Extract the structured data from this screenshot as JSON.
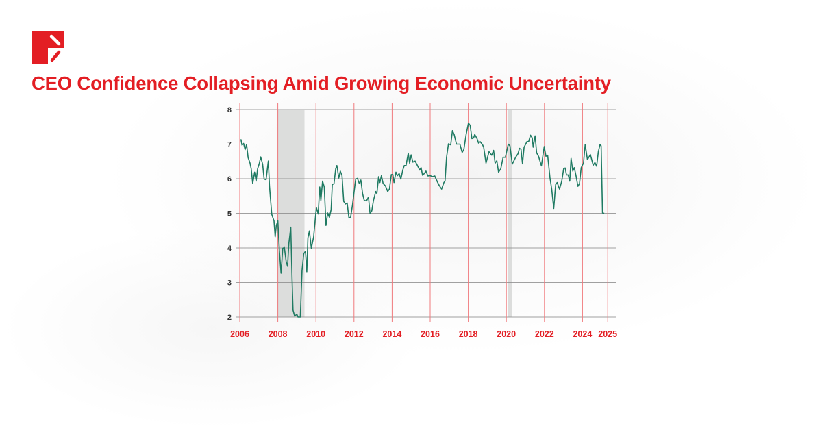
{
  "header": {
    "logo_icon": "red-square-logo-icon",
    "title": "CEO Confidence Collapsing Amid Growing Economic Uncertainty"
  },
  "colors": {
    "accent": "#e31e24",
    "line": "#1f7a62",
    "recession": "#dcdddc",
    "grid": "#8a8a8a"
  },
  "chart_data": {
    "type": "line",
    "title": "CEO Confidence Collapsing Amid Growing Economic Uncertainty",
    "xlabel": "",
    "ylabel": "",
    "xlim": [
      2006,
      2025
    ],
    "ylim": [
      2,
      8
    ],
    "x_ticks": [
      "2006",
      "2008",
      "2010",
      "2012",
      "2014",
      "2016",
      "2018",
      "2020",
      "2022",
      "2024",
      "2025"
    ],
    "y_ticks": [
      "2",
      "3",
      "4",
      "5",
      "6",
      "7",
      "8"
    ],
    "grid": true,
    "recessions": [
      [
        2007.96,
        2009.4
      ],
      [
        2020.1,
        2020.3
      ]
    ],
    "series": [
      {
        "x": [
          2006.06,
          2006.12,
          2006.2,
          2006.28,
          2006.36,
          2006.44,
          2006.54,
          2006.6,
          2006.68,
          2006.78,
          2006.86,
          2006.94,
          2007.02,
          2007.1,
          2007.2,
          2007.28,
          2007.38,
          2007.5,
          2007.56,
          2007.68,
          2007.8,
          2007.86,
          2007.92,
          2008.0,
          2008.08,
          2008.17,
          2008.26,
          2008.34,
          2008.44,
          2008.51,
          2008.58,
          2008.68,
          2008.75,
          2008.8,
          2008.88,
          2009.0,
          2009.06,
          2009.18,
          2009.27,
          2009.36,
          2009.45,
          2009.52,
          2009.58,
          2009.66,
          2009.76,
          2009.88,
          2010.02,
          2010.12,
          2010.2,
          2010.26,
          2010.35,
          2010.44,
          2010.53,
          2010.62,
          2010.71,
          2010.8,
          2010.86,
          2010.95,
          2011.04,
          2011.1,
          2011.2,
          2011.28,
          2011.37,
          2011.46,
          2011.56,
          2011.64,
          2011.73,
          2011.82,
          2011.92,
          2012.0,
          2012.09,
          2012.18,
          2012.28,
          2012.36,
          2012.45,
          2012.54,
          2012.66,
          2012.76,
          2012.84,
          2012.93,
          2013.02,
          2013.14,
          2013.2,
          2013.29,
          2013.36,
          2013.44,
          2013.53,
          2013.65,
          2013.77,
          2013.86,
          2013.96,
          2014.04,
          2014.1,
          2014.2,
          2014.28,
          2014.37,
          2014.46,
          2014.56,
          2014.64,
          2014.73,
          2014.85,
          2014.92,
          2015.0,
          2015.09,
          2015.21,
          2015.33,
          2015.45,
          2015.52,
          2015.6,
          2015.69,
          2015.78,
          2015.88,
          2016.0,
          2016.12,
          2016.24,
          2016.36,
          2016.48,
          2016.6,
          2016.72,
          2016.78,
          2016.86,
          2016.96,
          2017.08,
          2017.17,
          2017.26,
          2017.38,
          2017.56,
          2017.68,
          2017.77,
          2017.89,
          2018.01,
          2018.1,
          2018.19,
          2018.28,
          2018.34,
          2018.46,
          2018.54,
          2018.63,
          2018.75,
          2018.81,
          2018.93,
          2019.09,
          2019.23,
          2019.33,
          2019.41,
          2019.5,
          2019.59,
          2019.71,
          2019.83,
          2019.95,
          2020.1,
          2020.19,
          2020.31,
          2020.49,
          2020.61,
          2020.69,
          2020.77,
          2020.85,
          2020.93,
          2021.09,
          2021.17,
          2021.27,
          2021.36,
          2021.41,
          2021.51,
          2021.59,
          2021.69,
          2021.84,
          2021.99,
          2022.08,
          2022.17,
          2022.29,
          2022.38,
          2022.49,
          2022.59,
          2022.67,
          2022.79,
          2022.91,
          2023.01,
          2023.09,
          2023.16,
          2023.25,
          2023.33,
          2023.4,
          2023.49,
          2023.57,
          2023.66,
          2023.76,
          2023.84,
          2023.93,
          2024.05,
          2024.14,
          2024.26,
          2024.41,
          2024.56,
          2024.65,
          2024.74,
          2024.83,
          2024.92,
          2024.98,
          2025.05,
          2025.14
        ],
        "y": [
          7.14,
          6.97,
          7.02,
          6.84,
          6.99,
          6.61,
          6.45,
          6.29,
          5.86,
          6.19,
          5.93,
          6.29,
          6.43,
          6.63,
          6.42,
          5.99,
          5.97,
          6.51,
          5.79,
          4.97,
          4.78,
          4.32,
          4.65,
          4.78,
          3.93,
          3.27,
          3.99,
          4.01,
          3.6,
          3.47,
          4.13,
          4.6,
          3.08,
          2.2,
          2.03,
          2.08,
          2.0,
          2.0,
          3.34,
          3.83,
          3.9,
          3.31,
          4.29,
          4.49,
          3.99,
          4.32,
          5.17,
          4.98,
          5.76,
          5.37,
          5.93,
          5.76,
          4.65,
          5.01,
          4.88,
          5.11,
          5.83,
          5.86,
          6.29,
          6.38,
          6.02,
          6.22,
          6.09,
          5.34,
          5.27,
          5.3,
          4.88,
          4.88,
          5.24,
          5.6,
          5.99,
          6.01,
          5.86,
          5.96,
          5.57,
          5.37,
          5.36,
          5.47,
          4.99,
          5.07,
          5.37,
          5.63,
          5.57,
          6.06,
          5.89,
          6.09,
          5.86,
          5.79,
          5.63,
          5.7,
          6.12,
          6.12,
          5.89,
          6.19,
          6.09,
          6.15,
          5.99,
          6.25,
          6.38,
          6.38,
          6.74,
          6.45,
          6.69,
          6.48,
          6.51,
          6.38,
          6.25,
          6.32,
          6.1,
          6.15,
          6.22,
          6.08,
          6.09,
          6.06,
          6.08,
          5.93,
          5.8,
          5.7,
          5.89,
          5.93,
          6.62,
          7.01,
          6.98,
          7.39,
          7.28,
          7.0,
          7.0,
          6.76,
          6.85,
          7.28,
          7.61,
          7.54,
          7.16,
          7.18,
          7.28,
          7.16,
          7.03,
          7.07,
          6.98,
          6.91,
          6.45,
          6.78,
          6.68,
          6.82,
          6.45,
          6.52,
          6.19,
          6.29,
          6.62,
          6.62,
          7.0,
          6.95,
          6.42,
          6.62,
          6.72,
          6.88,
          6.85,
          6.43,
          6.91,
          7.08,
          7.07,
          7.26,
          7.18,
          6.91,
          7.24,
          6.75,
          6.65,
          6.37,
          6.93,
          6.65,
          6.68,
          6.03,
          5.7,
          5.14,
          5.83,
          5.89,
          5.7,
          5.93,
          6.29,
          6.31,
          6.11,
          6.11,
          5.93,
          6.59,
          6.22,
          6.32,
          6.09,
          5.78,
          5.86,
          6.32,
          6.45,
          6.99,
          6.55,
          6.7,
          6.39,
          6.47,
          6.36,
          6.78,
          6.99,
          6.95,
          5.01,
          5.0
        ]
      }
    ]
  }
}
